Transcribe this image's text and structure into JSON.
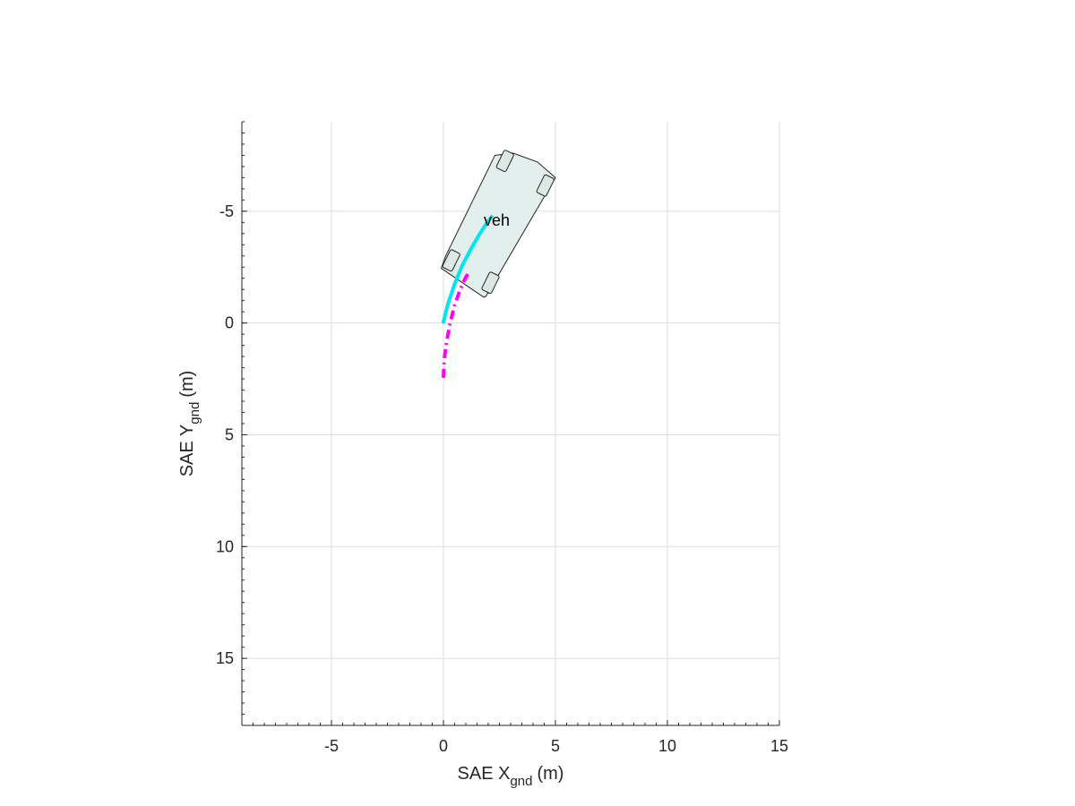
{
  "chart_data": {
    "type": "line",
    "xlabel": {
      "main": "SAE X",
      "sub": "gnd",
      "unit": "(m)"
    },
    "ylabel": {
      "main": "SAE Y",
      "sub": "gnd",
      "unit": "(m)"
    },
    "xlim": [
      -9,
      15
    ],
    "ylim": [
      -9,
      18
    ],
    "y_direction": "reversed",
    "grid": true,
    "xticks": [
      -5,
      0,
      5,
      10,
      15
    ],
    "yticks": [
      -5,
      0,
      5,
      10,
      15
    ],
    "x_minor_step": 0.5,
    "y_minor_step": 0.5,
    "series": [
      {
        "color": "#00e5ee",
        "style": "solid",
        "x": [
          0.0,
          0.2,
          0.5,
          0.85,
          1.25,
          1.6,
          1.95,
          2.15
        ],
        "y": [
          -0.05,
          -0.85,
          -1.75,
          -2.6,
          -3.35,
          -3.95,
          -4.5,
          -4.75
        ]
      },
      {
        "color": "#ff00ff",
        "style": "dashdot",
        "x": [
          0.0,
          0.04,
          0.15,
          0.3,
          0.5,
          0.75,
          1.0,
          1.2
        ],
        "y": [
          2.45,
          1.6,
          0.8,
          0.0,
          -0.8,
          -1.5,
          -2.05,
          -2.35
        ]
      }
    ],
    "vehicle": {
      "label": "veh",
      "fill": "#e3efed",
      "body": [
        [
          2.3,
          -7.5
        ],
        [
          3.1,
          -7.6
        ],
        [
          4.2,
          -7.2
        ],
        [
          5.0,
          -6.5
        ],
        [
          1.9,
          -1.2
        ],
        [
          1.8,
          -1.15
        ],
        [
          -0.1,
          -2.45
        ],
        [
          0.1,
          -3.0
        ]
      ],
      "wheels": [
        [
          2.7,
          -7.2
        ],
        [
          2.45,
          -7.25
        ],
        [
          4.6,
          -6.3
        ],
        [
          4.7,
          -6.2
        ],
        [
          0.3,
          -2.75
        ],
        [
          0.6,
          -2.75
        ],
        [
          1.9,
          -1.6
        ],
        [
          2.1,
          -1.65
        ]
      ]
    }
  }
}
